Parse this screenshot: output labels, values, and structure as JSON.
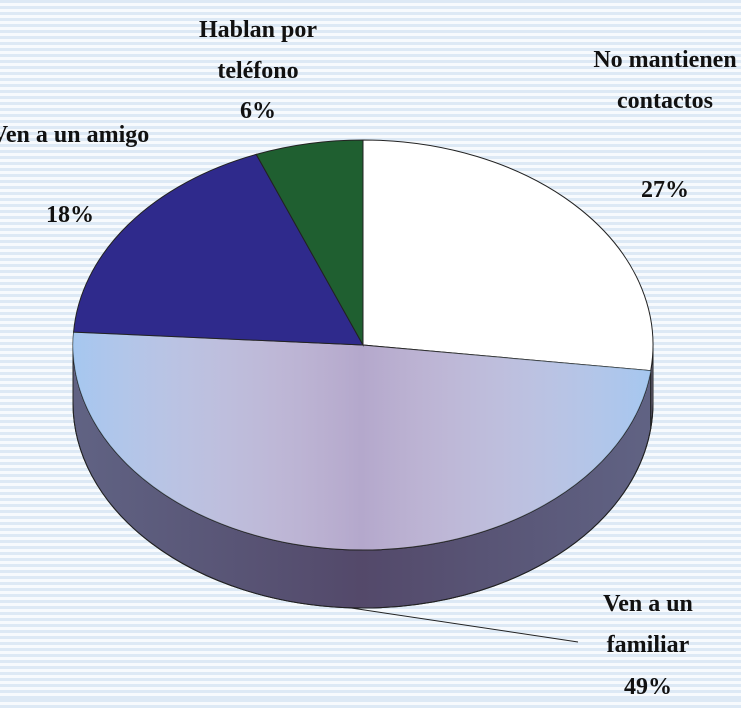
{
  "chart_data": {
    "type": "pie",
    "categories": [
      "No mantienen contactos",
      "Ven a un familiar",
      "Ven a un amigo",
      "Hablan por teléfono"
    ],
    "values": [
      27,
      49,
      18,
      6
    ],
    "value_labels": [
      "27%",
      "49%",
      "18%",
      "6%"
    ],
    "colors": [
      "#ffffff",
      "#b4a8cc",
      "#2f2a8c",
      "#1f5f30"
    ]
  }
}
